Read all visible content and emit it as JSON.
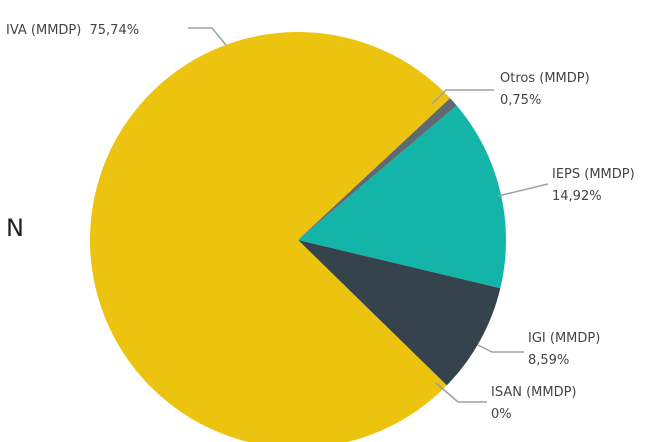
{
  "chart_data": {
    "type": "pie",
    "edge_text": "N",
    "slices": [
      {
        "label": "IVA (MMDP)",
        "value": 75.74,
        "value_label": "75,74%",
        "color": "#ecc30f"
      },
      {
        "label": "Otros (MMDP)",
        "value": 0.75,
        "value_label": "0,75%",
        "color": "#5f6b73"
      },
      {
        "label": "IEPS (MMDP)",
        "value": 14.92,
        "value_label": "14,92%",
        "color": "#12b5a7"
      },
      {
        "label": "IGI (MMDP)",
        "value": 8.59,
        "value_label": "8,59%",
        "color": "#34434c"
      },
      {
        "label": "ISAN (MMDP)",
        "value": 0,
        "value_label": "0%",
        "color": "#7b7f82"
      }
    ],
    "leader_line_color": "#9aa0a6"
  }
}
